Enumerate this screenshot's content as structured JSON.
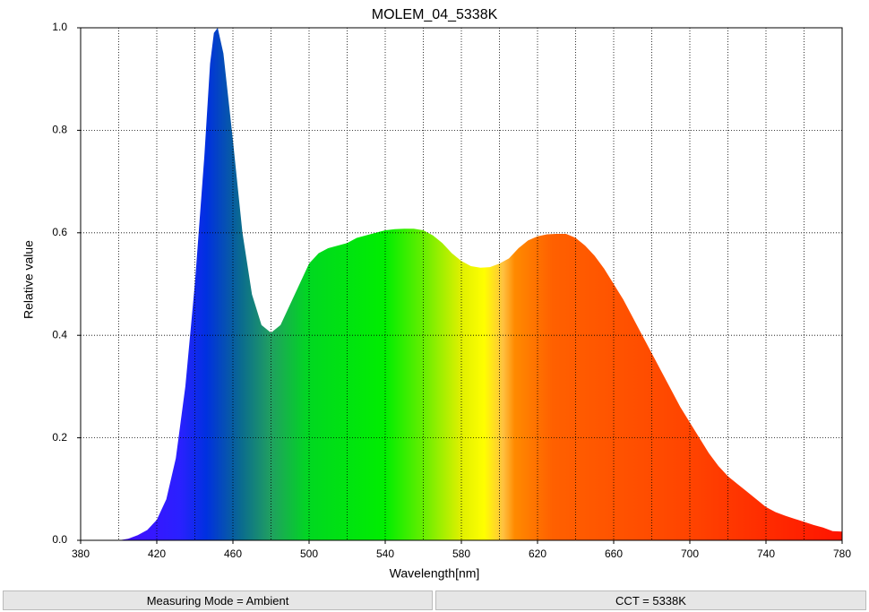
{
  "chart_data": {
    "type": "area",
    "title": "MOLEM_04_5338K",
    "x_label": "Wavelength[nm]",
    "y_label": "Relative value",
    "x": [
      380,
      390,
      400,
      405,
      410,
      415,
      420,
      425,
      430,
      435,
      440,
      445,
      448,
      450,
      452,
      455,
      460,
      465,
      470,
      475,
      480,
      485,
      490,
      495,
      500,
      505,
      510,
      515,
      520,
      525,
      530,
      535,
      540,
      545,
      550,
      555,
      560,
      565,
      570,
      575,
      580,
      585,
      590,
      595,
      600,
      605,
      610,
      615,
      620,
      625,
      630,
      635,
      640,
      645,
      650,
      655,
      660,
      665,
      670,
      675,
      680,
      685,
      690,
      695,
      700,
      705,
      710,
      715,
      720,
      725,
      730,
      735,
      740,
      745,
      750,
      755,
      760,
      765,
      770,
      775,
      780
    ],
    "values": [
      0,
      0,
      0,
      0.003,
      0.01,
      0.02,
      0.04,
      0.08,
      0.16,
      0.3,
      0.5,
      0.75,
      0.93,
      0.99,
      1.0,
      0.95,
      0.78,
      0.6,
      0.48,
      0.42,
      0.405,
      0.42,
      0.46,
      0.5,
      0.54,
      0.56,
      0.57,
      0.575,
      0.58,
      0.59,
      0.595,
      0.6,
      0.605,
      0.607,
      0.608,
      0.608,
      0.605,
      0.595,
      0.58,
      0.56,
      0.545,
      0.535,
      0.532,
      0.533,
      0.54,
      0.55,
      0.57,
      0.585,
      0.593,
      0.597,
      0.598,
      0.598,
      0.59,
      0.575,
      0.555,
      0.53,
      0.5,
      0.47,
      0.435,
      0.4,
      0.365,
      0.33,
      0.295,
      0.26,
      0.23,
      0.2,
      0.17,
      0.145,
      0.125,
      0.11,
      0.095,
      0.08,
      0.065,
      0.055,
      0.048,
      0.042,
      0.036,
      0.03,
      0.025,
      0.018,
      0.017
    ],
    "xlim": [
      380,
      780
    ],
    "ylim": [
      0,
      1
    ],
    "xticks": [
      380,
      420,
      460,
      500,
      540,
      580,
      620,
      660,
      700,
      740,
      780
    ],
    "xgrid_minor": [
      400,
      440,
      480,
      520,
      560,
      600,
      640,
      680,
      720,
      760
    ],
    "yticks": [
      {
        "value": 0,
        "label": "0.0"
      },
      0.2,
      0.4,
      0.6,
      0.8,
      {
        "value": 1,
        "label": "1.0"
      }
    ],
    "grid": true
  },
  "footer": [
    "Measuring Mode = Ambient",
    "CCT = 5338K"
  ]
}
